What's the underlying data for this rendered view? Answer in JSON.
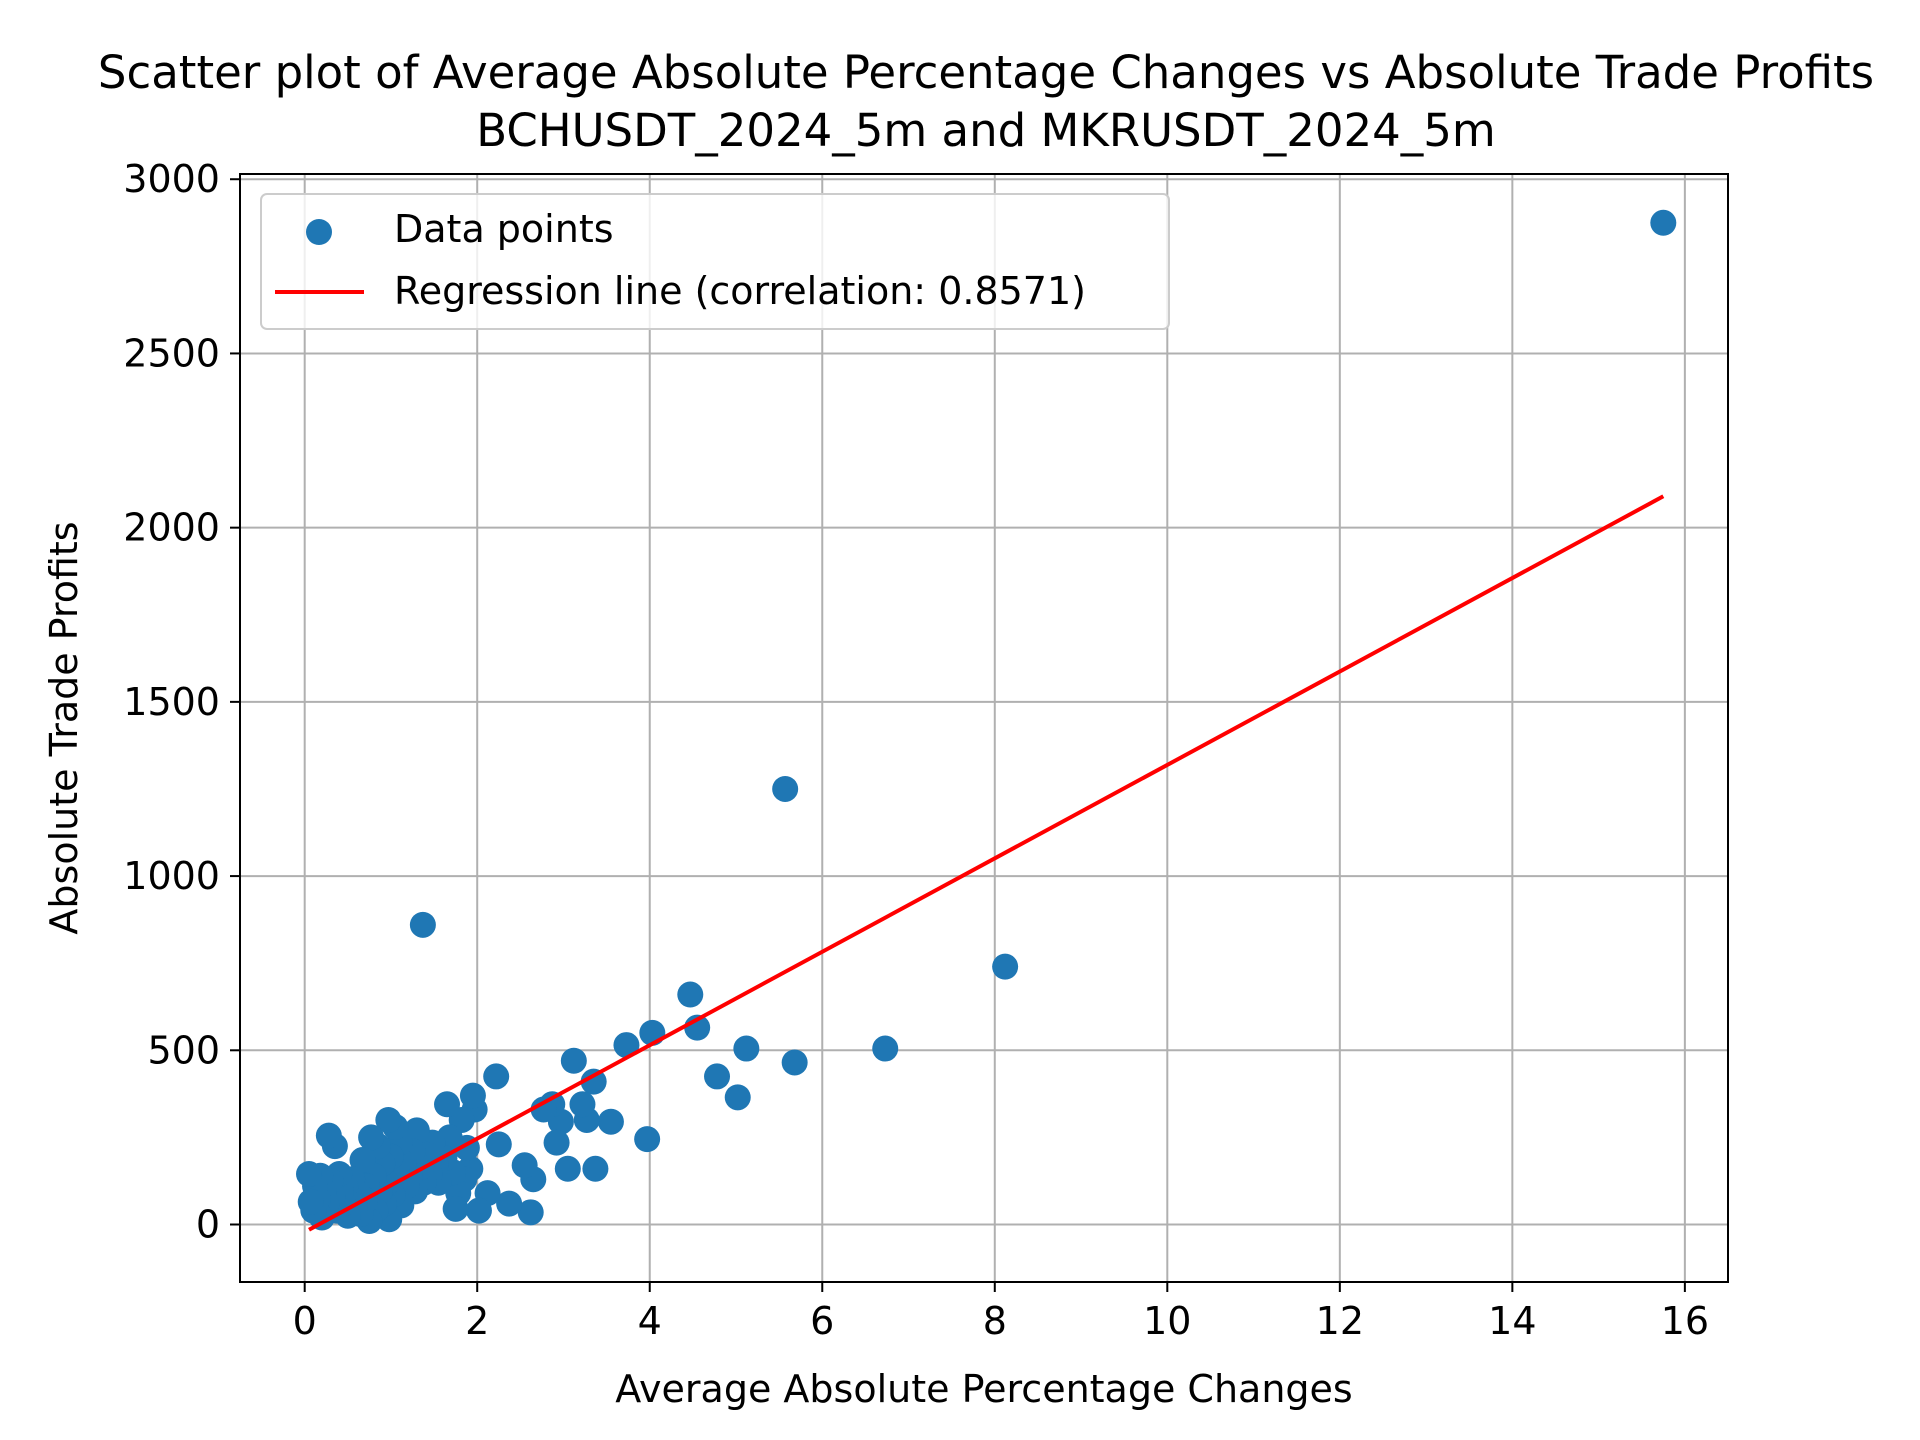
{
  "chart_data": {
    "type": "scatter",
    "title": "Scatter plot of Average Absolute Percentage Changes vs Absolute Trade Profits",
    "subtitle": "BCHUSDT_2024_5m and MKRUSDT_2024_5m",
    "xlabel": "Average Absolute Percentage Changes",
    "ylabel": "Absolute Trade Profits",
    "xlim": [
      -0.75,
      16.5
    ],
    "ylim": [
      -165,
      3015
    ],
    "xticks": [
      0,
      2,
      4,
      6,
      8,
      10,
      12,
      14,
      16
    ],
    "yticks": [
      0,
      500,
      1000,
      1500,
      2000,
      2500,
      3000
    ],
    "grid": true,
    "legend_position": "top-left",
    "colors": {
      "points": "#1f77b4",
      "regression": "#ff0000",
      "grid": "#b0b0b0"
    },
    "series": [
      {
        "name": "Data points",
        "kind": "scatter",
        "points": [
          [
            15.75,
            2875
          ],
          [
            5.57,
            1250
          ],
          [
            8.12,
            740
          ],
          [
            1.37,
            860
          ],
          [
            6.73,
            505
          ],
          [
            5.68,
            465
          ],
          [
            5.12,
            505
          ],
          [
            5.02,
            365
          ],
          [
            4.78,
            425
          ],
          [
            4.55,
            565
          ],
          [
            4.47,
            660
          ],
          [
            4.03,
            550
          ],
          [
            3.97,
            245
          ],
          [
            3.73,
            515
          ],
          [
            3.55,
            295
          ],
          [
            3.37,
            160
          ],
          [
            3.35,
            410
          ],
          [
            3.27,
            300
          ],
          [
            3.22,
            345
          ],
          [
            3.12,
            470
          ],
          [
            3.05,
            160
          ],
          [
            2.97,
            295
          ],
          [
            2.92,
            235
          ],
          [
            2.87,
            345
          ],
          [
            2.77,
            330
          ],
          [
            2.65,
            130
          ],
          [
            2.62,
            35
          ],
          [
            2.55,
            170
          ],
          [
            2.37,
            60
          ],
          [
            2.25,
            230
          ],
          [
            2.22,
            425
          ],
          [
            2.12,
            90
          ],
          [
            2.02,
            40
          ],
          [
            1.97,
            330
          ],
          [
            1.95,
            370
          ],
          [
            1.92,
            160
          ],
          [
            1.88,
            220
          ],
          [
            1.85,
            130
          ],
          [
            1.82,
            300
          ],
          [
            1.78,
            90
          ],
          [
            1.75,
            45
          ],
          [
            1.72,
            150
          ],
          [
            1.68,
            250
          ],
          [
            1.65,
            345
          ],
          [
            1.62,
            190
          ],
          [
            1.55,
            120
          ],
          [
            1.52,
            170
          ],
          [
            1.48,
            235
          ],
          [
            1.45,
            145
          ],
          [
            1.42,
            200
          ],
          [
            1.38,
            120
          ],
          [
            1.35,
            165
          ],
          [
            1.3,
            270
          ],
          [
            1.28,
            95
          ],
          [
            1.25,
            210
          ],
          [
            1.22,
            140
          ],
          [
            1.18,
            110
          ],
          [
            1.15,
            175
          ],
          [
            1.12,
            55
          ],
          [
            1.1,
            235
          ],
          [
            1.07,
            150
          ],
          [
            1.05,
            280
          ],
          [
            1.02,
            85
          ],
          [
            1.0,
            195
          ],
          [
            0.98,
            15
          ],
          [
            0.97,
            300
          ],
          [
            0.95,
            120
          ],
          [
            0.92,
            60
          ],
          [
            0.9,
            175
          ],
          [
            0.87,
            95
          ],
          [
            0.85,
            225
          ],
          [
            0.82,
            40
          ],
          [
            0.8,
            140
          ],
          [
            0.77,
            250
          ],
          [
            0.75,
            10
          ],
          [
            0.72,
            110
          ],
          [
            0.7,
            70
          ],
          [
            0.67,
            185
          ],
          [
            0.65,
            30
          ],
          [
            0.62,
            90
          ],
          [
            0.58,
            50
          ],
          [
            0.55,
            130
          ],
          [
            0.52,
            75
          ],
          [
            0.5,
            25
          ],
          [
            0.47,
            110
          ],
          [
            0.45,
            60
          ],
          [
            0.42,
            95
          ],
          [
            0.4,
            145
          ],
          [
            0.37,
            40
          ],
          [
            0.35,
            225
          ],
          [
            0.32,
            80
          ],
          [
            0.3,
            125
          ],
          [
            0.28,
            255
          ],
          [
            0.25,
            55
          ],
          [
            0.22,
            95
          ],
          [
            0.2,
            20
          ],
          [
            0.18,
            140
          ],
          [
            0.15,
            75
          ],
          [
            0.12,
            110
          ],
          [
            0.1,
            40
          ],
          [
            0.07,
            65
          ],
          [
            0.05,
            145
          ]
        ]
      },
      {
        "name": "Regression line (correlation: 0.8571)",
        "kind": "line",
        "x": [
          0.05,
          15.75
        ],
        "y": [
          -15,
          2090
        ]
      }
    ]
  }
}
